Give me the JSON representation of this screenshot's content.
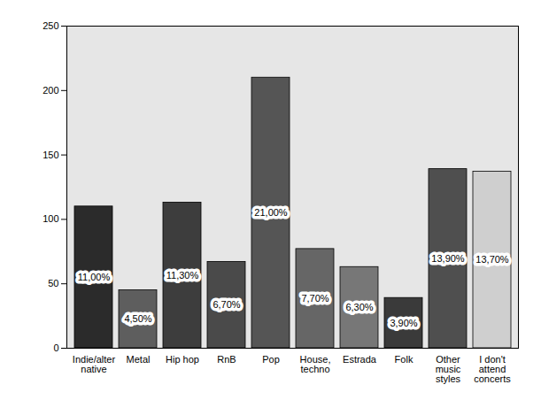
{
  "chart_data": {
    "type": "bar",
    "categories": [
      "Indie/alter\nnative",
      "Metal",
      "Hip hop",
      "RnB",
      "Pop",
      "House,\ntechno",
      "Estrada",
      "Folk",
      "Other\nmusic\nstyles",
      "I don't\nattend\nconcerts"
    ],
    "values": [
      110,
      45,
      113,
      67,
      210,
      77,
      63,
      39,
      139,
      137
    ],
    "value_labels": [
      "11,00%",
      "4,50%",
      "11,30%",
      "6,70%",
      "21,00%",
      "7,70%",
      "6,30%",
      "3,90%",
      "13,90%",
      "13,70%"
    ],
    "data_labels": true,
    "colors": [
      "#2b2b2b",
      "#5e5e5e",
      "#3d3d3d",
      "#4a4a4a",
      "#555555",
      "#666666",
      "#777777",
      "#3a3a3a",
      "#4f4f4f",
      "#cfcfcf"
    ],
    "ylim": [
      0,
      250
    ],
    "yticks": [
      0,
      50,
      100,
      150,
      200,
      250
    ],
    "grid": false
  }
}
